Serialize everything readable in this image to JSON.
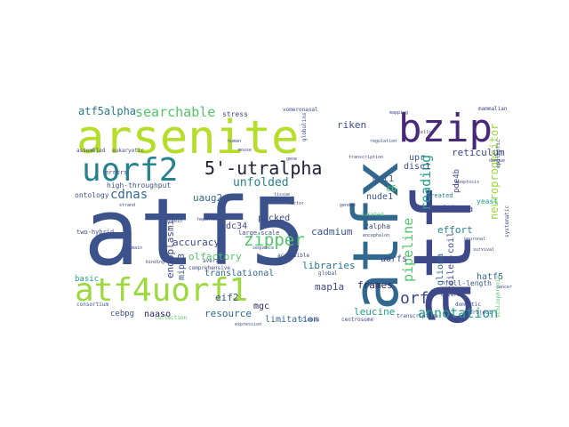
{
  "words": {
    "atf5": "atf5",
    "atf": "atf",
    "atfx": "atfx",
    "arsenite": "arsenite",
    "bzip": "bzip",
    "uorf2": "uorf2",
    "atf4uorf1": "atf4uorf1",
    "utralpha": "5'-utralpha",
    "searchable": "searchable",
    "zipper": "zipper",
    "annotation": "annotation",
    "orf": "orf",
    "cdnas": "cdnas",
    "unfolded": "unfolded",
    "atf5alpha": "atf5alpha",
    "pipeline": "pipeline",
    "reading": "reading",
    "neuroprogenitor": "neuroprogenitor",
    "cadmium": "cadmium",
    "resource": "resource",
    "accuracy": "accuracy",
    "olfactory": "olfactory",
    "uaug2": "uaug2",
    "cdc34": "cdc34",
    "eif2": "eif2",
    "mgc": "mgc",
    "picked": "picked",
    "libraries": "libraries",
    "frames": "frames",
    "map1a": "map1a",
    "leucine": "leucine",
    "riken": "riken",
    "reticulum": "reticulum",
    "upr": "upr",
    "disc1": "disc1",
    "mcl1": "mcl1",
    "c6": "c6",
    "nude1": "nude1",
    "atf5beta": "atf5beta",
    "effort": "effort",
    "hatf5": "hatf5",
    "uorfs": "uorfs",
    "glioma": "glioma",
    "coiledcoil": "coiled-coil",
    "endoplasmic": "endoplasmic",
    "mipt3": "mipt3",
    "translational": "translational",
    "limitation": "limitation",
    "naaso": "naaso",
    "cebpg": "cebpg",
    "basic": "basic",
    "pde4b": "pde4b",
    "alpha2": "2alpha",
    "fulllength": "full-length",
    "yeast": "yeast",
    "stress": "stress",
    "highthroughput": "high-throughput",
    "ontology": "ontology",
    "errors": "errors",
    "twohybrid": "two-hybrid",
    "consortium": "consortium",
    "largescale": "large-scale",
    "curated": "curated",
    "created": "created",
    "diverse": "diverse",
    "domestic": "domestic",
    "global": "global",
    "centrosome": "centrosome",
    "transcriptome": "transcriptome",
    "average": "average",
    "comprehensive": "comprehensive",
    "systematic": "systematic",
    "schizophrenia": "schizophrenia",
    "mammalian": "mammalian",
    "vomeronasal": "vomeronasal",
    "eukaryotic": "eukaryotic",
    "assembled": "assembled",
    "accessible": "accessible",
    "clones": "clones",
    "collection": "collection",
    "project": "project",
    "epileptic": "epileptic",
    "dengue": "dengue",
    "globulin": "globulins",
    "hepatoma": "hepatoma",
    "mapping": "mapping",
    "encephalon": "encephalon",
    "sequence": "sequence",
    "genome": "genome",
    "strand": "strand",
    "protein": "protein",
    "human": "human",
    "mouse": "mouse",
    "tissue": "tissue",
    "factor": "factor",
    "binding": "binding",
    "domain": "domain",
    "expression": "expression",
    "transcription": "transcription",
    "regulation": "regulation",
    "apoptosis": "apoptosis",
    "neuronal": "neuronal",
    "survival": "survival",
    "cancer": "cancer",
    "cells": "cells",
    "gene": "gene"
  },
  "colors": {
    "yellow": "#b5de2b",
    "lime": "#9bd93c",
    "green": "#52c569",
    "teal": "#1f9e89",
    "cyan": "#26828e",
    "blue": "#31688e",
    "indigo": "#3e4989",
    "purple": "#482878",
    "dark": "#440154"
  }
}
